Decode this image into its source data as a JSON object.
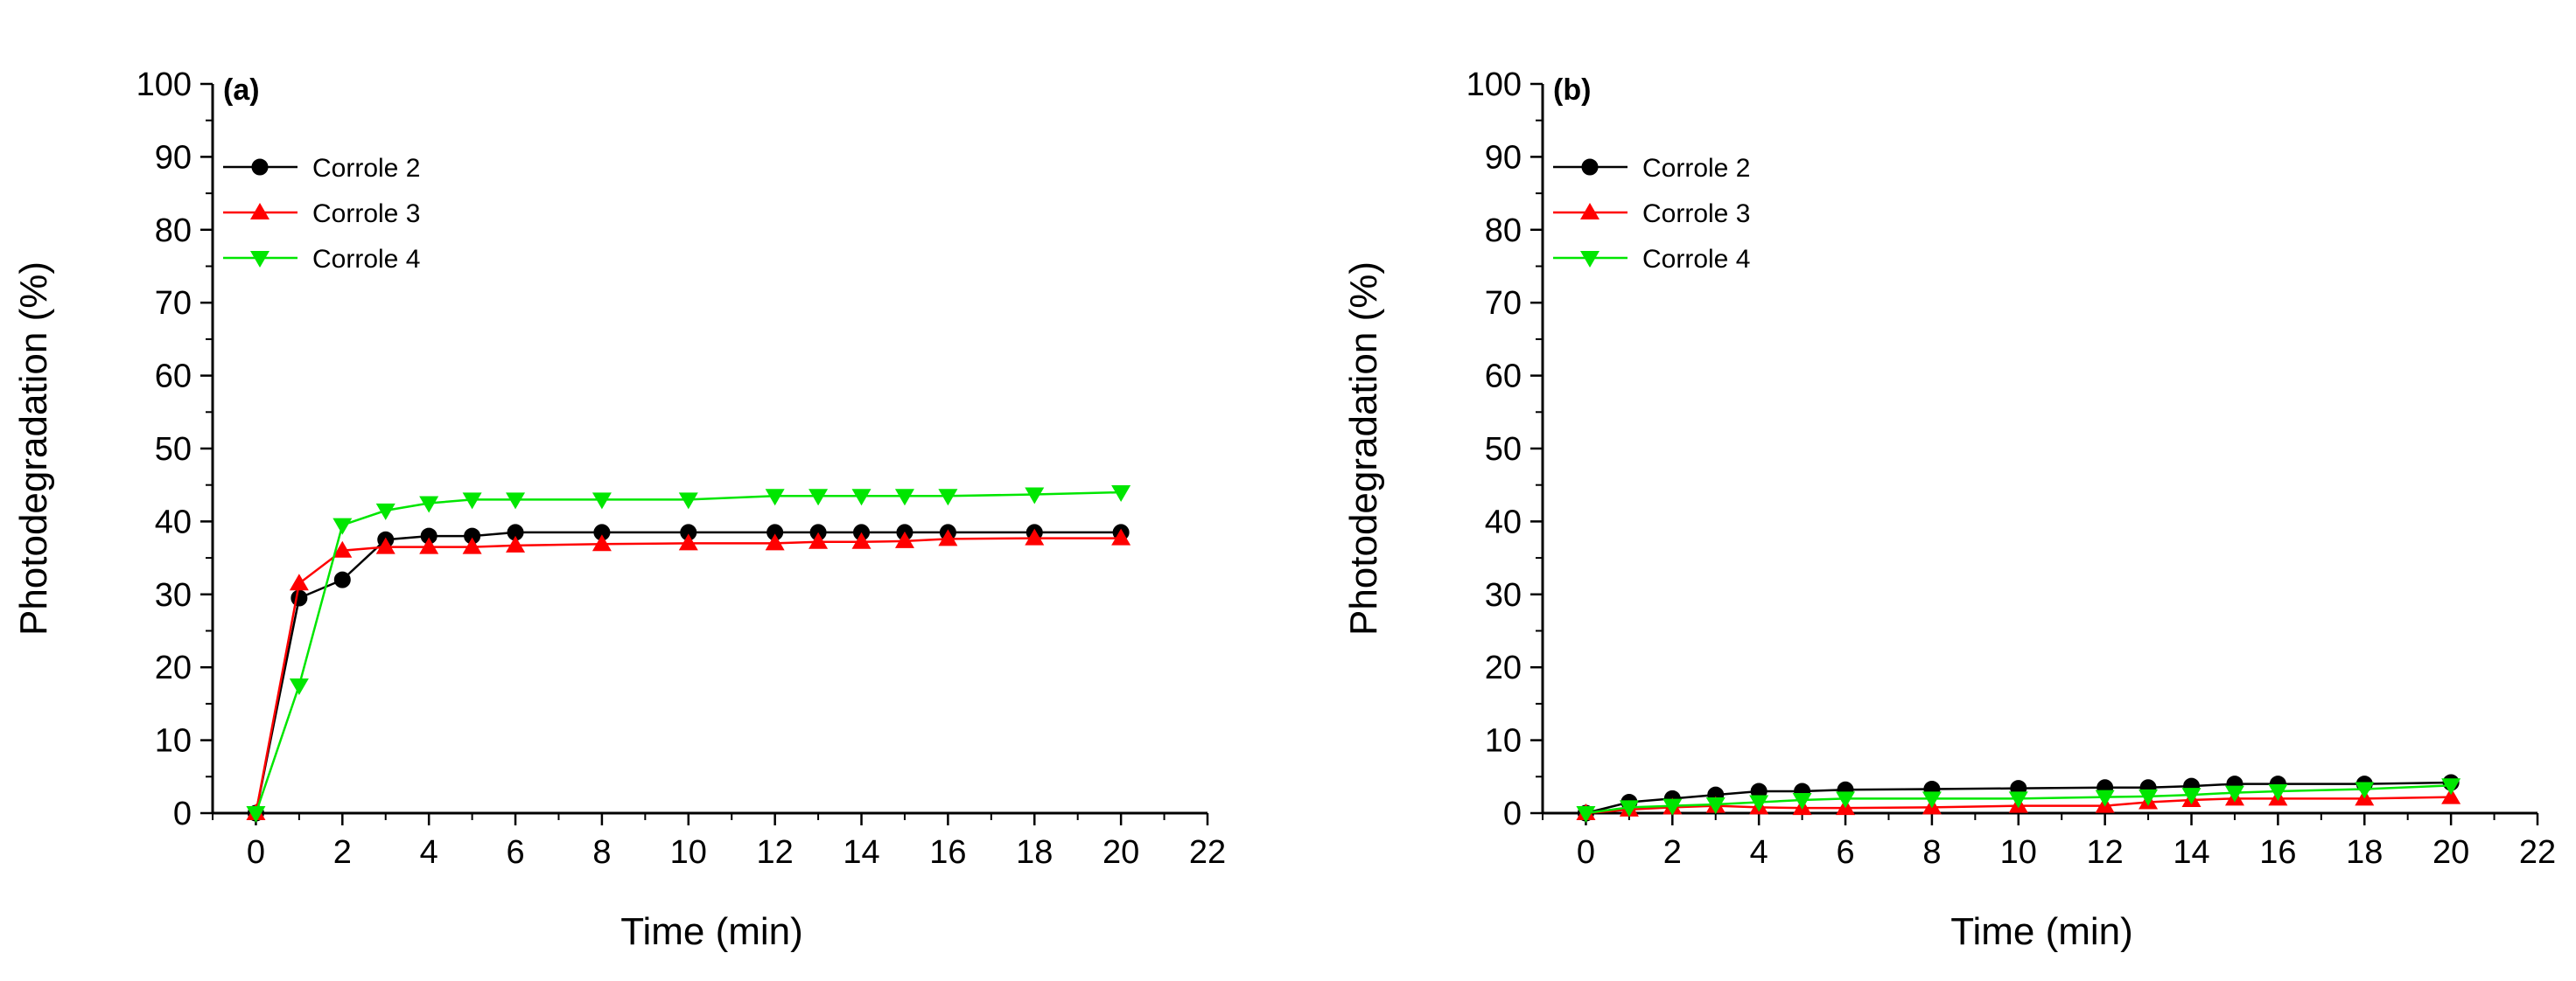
{
  "chart_data": [
    {
      "type": "line",
      "panel_label": "(a)",
      "xlabel": "Time (min)",
      "ylabel": "Photodegradation (%)",
      "xlim": [
        -1,
        22
      ],
      "ylim": [
        0,
        100
      ],
      "xticks": [
        0,
        2,
        4,
        6,
        8,
        10,
        12,
        14,
        16,
        18,
        20,
        22
      ],
      "yticks": [
        0,
        10,
        20,
        30,
        40,
        50,
        60,
        70,
        80,
        90,
        100
      ],
      "legend_position": "top-left",
      "grid": false,
      "series": [
        {
          "name": "Corrole 2",
          "color": "#000000",
          "marker": "circle",
          "x": [
            0,
            1,
            2,
            3,
            4,
            5,
            6,
            8,
            10,
            12,
            13,
            14,
            15,
            16,
            18,
            20
          ],
          "y": [
            0,
            29.5,
            32,
            37.5,
            38,
            38,
            38.5,
            38.5,
            38.5,
            38.5,
            38.5,
            38.5,
            38.5,
            38.5,
            38.5,
            38.5
          ]
        },
        {
          "name": "Corrole 3",
          "color": "#ff0000",
          "marker": "triangle-up",
          "x": [
            0,
            1,
            2,
            3,
            4,
            5,
            6,
            8,
            10,
            12,
            13,
            14,
            15,
            16,
            18,
            20
          ],
          "y": [
            0,
            31.5,
            36,
            36.5,
            36.5,
            36.5,
            36.7,
            36.9,
            37,
            37,
            37.2,
            37.2,
            37.3,
            37.6,
            37.7,
            37.7
          ]
        },
        {
          "name": "Corrole 4",
          "color": "#00e600",
          "marker": "triangle-down",
          "x": [
            0,
            1,
            2,
            3,
            4,
            5,
            6,
            8,
            10,
            12,
            13,
            14,
            15,
            16,
            18,
            20
          ],
          "y": [
            0,
            17.5,
            39.5,
            41.5,
            42.5,
            43,
            43,
            43,
            43,
            43.5,
            43.5,
            43.5,
            43.5,
            43.5,
            43.7,
            44
          ]
        }
      ]
    },
    {
      "type": "line",
      "panel_label": "(b)",
      "xlabel": "Time (min)",
      "ylabel": "Photodegradation (%)",
      "xlim": [
        -1,
        22
      ],
      "ylim": [
        0,
        100
      ],
      "xticks": [
        0,
        2,
        4,
        6,
        8,
        10,
        12,
        14,
        16,
        18,
        20,
        22
      ],
      "yticks": [
        0,
        10,
        20,
        30,
        40,
        50,
        60,
        70,
        80,
        90,
        100
      ],
      "legend_position": "top-left",
      "grid": false,
      "series": [
        {
          "name": "Corrole 2",
          "color": "#000000",
          "marker": "circle",
          "x": [
            0,
            1,
            2,
            3,
            4,
            5,
            6,
            8,
            10,
            12,
            13,
            14,
            15,
            16,
            18,
            20
          ],
          "y": [
            0,
            1.5,
            2,
            2.5,
            3,
            3,
            3.2,
            3.3,
            3.4,
            3.5,
            3.5,
            3.7,
            4,
            4,
            4,
            4.2
          ]
        },
        {
          "name": "Corrole 3",
          "color": "#ff0000",
          "marker": "triangle-up",
          "x": [
            0,
            1,
            2,
            3,
            4,
            5,
            6,
            8,
            10,
            12,
            13,
            14,
            15,
            16,
            18,
            20
          ],
          "y": [
            0,
            0.5,
            0.8,
            1,
            0.8,
            0.7,
            0.7,
            0.8,
            1,
            1,
            1.5,
            1.8,
            2,
            2,
            2,
            2.2
          ]
        },
        {
          "name": "Corrole 4",
          "color": "#00e600",
          "marker": "triangle-down",
          "x": [
            0,
            1,
            2,
            3,
            4,
            5,
            6,
            8,
            10,
            12,
            13,
            14,
            15,
            16,
            18,
            20
          ],
          "y": [
            0,
            0.8,
            1,
            1.2,
            1.5,
            1.8,
            2,
            2,
            2,
            2.2,
            2.3,
            2.5,
            2.8,
            3,
            3.3,
            3.8
          ]
        }
      ]
    }
  ]
}
